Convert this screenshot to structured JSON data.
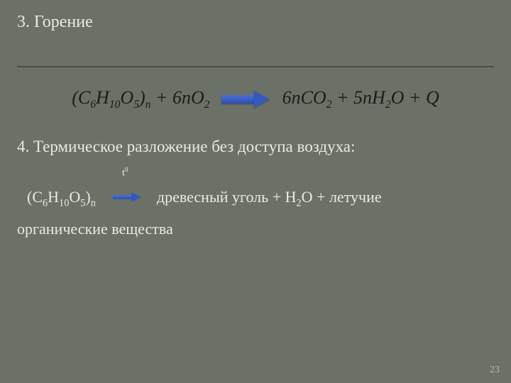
{
  "title": "3. Горение",
  "equation_image": {
    "lhs_1": "(C",
    "lhs_1_sub": "6",
    "lhs_2": "H",
    "lhs_2_sub": "10",
    "lhs_3": "O",
    "lhs_3_sub": "5",
    "lhs_4": ")",
    "lhs_4_sub": "n",
    "plus1": "+ 6nO",
    "plus1_sub": "2",
    "rhs_1": "6nCO",
    "rhs_1_sub": "2",
    "rhs_plus": "+ 5nH",
    "rhs_2_sub": "2",
    "rhs_2": "O + Q"
  },
  "section4_text": "4. Термическое разложение  без доступа воздуха:",
  "temp_label": "t",
  "temp_sup": "0",
  "reaction": {
    "formula_open": "(C",
    "c_sub": "6",
    "h": "H",
    "h_sub": "10",
    "o": "O",
    "o_sub": "5",
    "close": ")",
    "n_sub": "n",
    "products_1": "древесный уголь  +  H",
    "h2_sub": "2",
    "products_2": "O  + летучие",
    "products_3": "органические вещества"
  },
  "page_number": "23"
}
